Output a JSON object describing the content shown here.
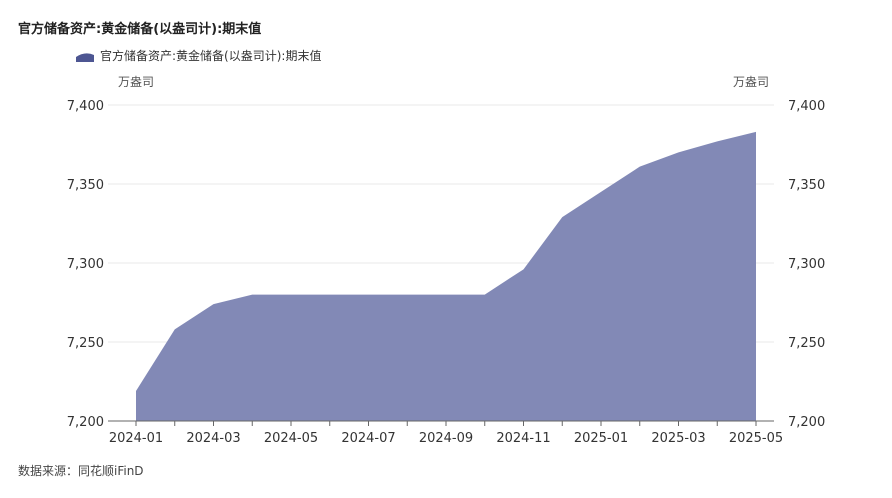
{
  "chart_title": "官方储备资产:黄金储备(以盎司计):期末值",
  "legend_label": "官方储备资产:黄金储备(以盎司计):期末值",
  "unit_left": "万盎司",
  "unit_right": "万盎司",
  "source": "数据来源：同花顺iFinD",
  "colors": {
    "area": "#8289b6",
    "legend": "#4d5692",
    "axis": "#666666",
    "grid": "#e8e8e8"
  },
  "chart_data": {
    "type": "area",
    "title": "官方储备资产:黄金储备(以盎司计):期末值",
    "x": [
      "2024-01",
      "2024-02",
      "2024-03",
      "2024-04",
      "2024-05",
      "2024-06",
      "2024-07",
      "2024-08",
      "2024-09",
      "2024-10",
      "2024-11",
      "2024-12",
      "2025-01",
      "2025-02",
      "2025-03",
      "2025-04",
      "2025-05"
    ],
    "x_tick_labels": [
      "2024-01",
      "2024-03",
      "2024-05",
      "2024-07",
      "2024-09",
      "2024-11",
      "2025-01",
      "2025-03",
      "2025-05"
    ],
    "series": [
      {
        "name": "官方储备资产:黄金储备(以盎司计):期末值",
        "values": [
          7219,
          7258,
          7274,
          7280,
          7280,
          7280,
          7280,
          7280,
          7280,
          7280,
          7296,
          7329,
          7345,
          7361,
          7370,
          7377,
          7383
        ]
      }
    ],
    "ylim": [
      7200,
      7400
    ],
    "y_ticks": [
      7200,
      7250,
      7300,
      7350,
      7400
    ],
    "y_tick_labels": [
      "7,200",
      "7,250",
      "7,300",
      "7,350",
      "7,400"
    ],
    "dual_axis": true,
    "grid": true,
    "legend_position": "top-left"
  }
}
